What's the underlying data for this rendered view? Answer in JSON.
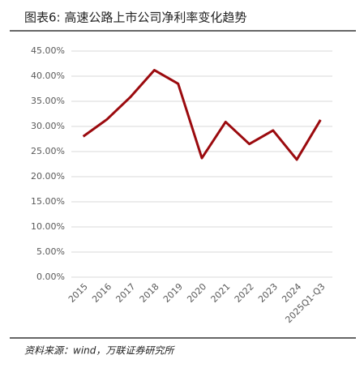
{
  "chart_data": {
    "type": "line",
    "title": "图表6: 高速公路上市公司净利率变化趋势",
    "source": "资料来源：wind，万联证券研究所",
    "categories": [
      "2015",
      "2016",
      "2017",
      "2018",
      "2019",
      "2020",
      "2021",
      "2022",
      "2023",
      "2024",
      "2025Q1-Q3"
    ],
    "values": [
      28.0,
      31.4,
      35.9,
      41.2,
      38.5,
      23.7,
      30.9,
      26.5,
      29.2,
      23.4,
      31.3
    ],
    "color": "#9b0a0e",
    "ylim": [
      0,
      45
    ],
    "yticks": [
      {
        "value": 0,
        "label": "0.00%"
      },
      {
        "value": 5,
        "label": "5.00%"
      },
      {
        "value": 10,
        "label": "10.00%"
      },
      {
        "value": 15,
        "label": "15.00%"
      },
      {
        "value": 20,
        "label": "20.00%"
      },
      {
        "value": 25,
        "label": "25.00%"
      },
      {
        "value": 30,
        "label": "30.00%"
      },
      {
        "value": 35,
        "label": "35.00%"
      },
      {
        "value": 40,
        "label": "40.00%"
      },
      {
        "value": 45,
        "label": "45.00%"
      }
    ],
    "grid": true
  }
}
